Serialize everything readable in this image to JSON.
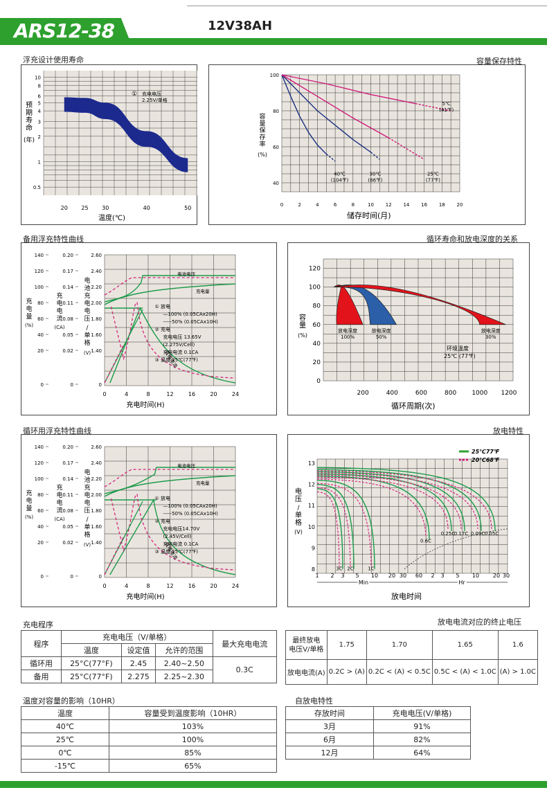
{
  "header": {
    "model": "ARS12-38",
    "spec": "12V38AH"
  },
  "sections": {
    "float_life": "浮充设计使用寿命",
    "capacity_retention": "容量保存特性",
    "standby_charge": "备用浮充特性曲线",
    "cycle_life": "循环寿命和放电深度的关系",
    "cycle_charge": "循环用浮充特性曲线",
    "discharge": "放电特性",
    "charge_proc": "充电程序",
    "cutoff": "放电电流对应的终止电压",
    "temp_effect": "温度对容量的影响（10HR）",
    "self_discharge": "自放电特性"
  },
  "chart_data": [
    {
      "type": "area",
      "id": "float-life",
      "ylabel": "预期寿命(年)",
      "xlabel": "温度(℃)",
      "x_ticks": [
        "20",
        "25",
        "30",
        "40",
        "50"
      ],
      "y_ticks": [
        "10",
        "8",
        "6",
        "5",
        "4",
        "3",
        "2",
        "1",
        "0.5"
      ],
      "legend": {
        "num": "①",
        "line1": "充电电压",
        "line2": "2.25V/单格"
      },
      "band_upper": [
        [
          20,
          5.8
        ],
        [
          25,
          5.7
        ],
        [
          30,
          5.0
        ],
        [
          40,
          2.3
        ],
        [
          50,
          1.1
        ]
      ],
      "band_lower": [
        [
          20,
          3.9
        ],
        [
          25,
          3.8
        ],
        [
          30,
          3.2
        ],
        [
          40,
          1.5
        ],
        [
          50,
          0.75
        ]
      ]
    },
    {
      "type": "line",
      "id": "capacity-retention",
      "ylabel": "容量保存率(%)",
      "xlabel": "储存时间(月)",
      "x_ticks": [
        "0",
        "2",
        "4",
        "6",
        "8",
        "10",
        "12",
        "14",
        "16",
        "18",
        "20"
      ],
      "y_ticks": [
        "100",
        "80",
        "60",
        "40"
      ],
      "series": [
        {
          "label": "40℃",
          "sub": "(104℉)",
          "color": "#1c2f80",
          "x": [
            0,
            1,
            2,
            3,
            4,
            5,
            6
          ],
          "y": [
            100,
            88,
            77,
            68,
            61,
            56,
            52
          ]
        },
        {
          "label": "30℃",
          "sub": "(86℉)",
          "color": "#1c2f80",
          "x": [
            0,
            2,
            4,
            6,
            8,
            10,
            11
          ],
          "y": [
            100,
            90,
            80,
            72,
            64,
            57,
            53
          ]
        },
        {
          "label": "25℃",
          "sub": "(77℉)",
          "color": "#d01a7a",
          "x": [
            0,
            4,
            8,
            12,
            16
          ],
          "y": [
            100,
            88,
            76,
            65,
            53
          ]
        },
        {
          "label": "5℃",
          "sub": "(41℉)",
          "color": "#d01a7a",
          "x": [
            0,
            5,
            10,
            15,
            19
          ],
          "y": [
            100,
            95,
            89,
            84,
            80
          ]
        }
      ]
    },
    {
      "type": "line",
      "id": "standby-charge",
      "xlabel": "充电时间(H)",
      "axis1": {
        "label": "充电量(%)",
        "ticks": [
          "140",
          "120",
          "100",
          "80",
          "60",
          "40",
          "20",
          "0"
        ]
      },
      "axis2": {
        "label": "充电电流(CA)",
        "ticks": [
          "0.20",
          "0.17",
          "0.14",
          "0.11",
          "0.08",
          "0.05",
          "0.02",
          "0"
        ]
      },
      "axis3": {
        "label": "电池充电电压/单格(V)",
        "ticks": [
          "2.60",
          "2.40",
          "2.20",
          "2.00",
          "1.80",
          "1.60",
          "1.40",
          "0"
        ]
      },
      "x_ticks": [
        "0",
        "4",
        "8",
        "12",
        "16",
        "20",
        "24"
      ],
      "curve_labels": {
        "voltage": "电池电压",
        "capacity": "充电量",
        "current": "充电电流"
      },
      "legend": [
        "①  放电",
        "—100% (0.05CAx20H)",
        "-----50% (0.05CAx10H)",
        "②  充电",
        "充电电压 13.65V",
        "(2.275V/Cell)",
        "充电电流 0.1CA",
        "③  温度 25℃(77℉)"
      ]
    },
    {
      "type": "line",
      "id": "cycle-life",
      "ylabel": "容量(%)",
      "xlabel": "循环周期(次)",
      "x_ticks": [
        "200",
        "400",
        "600",
        "800",
        "1000",
        "1200"
      ],
      "y_ticks": [
        "120",
        "100",
        "80",
        "60",
        "40",
        "20",
        "0"
      ],
      "series": [
        {
          "label": "放电深度",
          "sub": "100%",
          "color": "#e3131b",
          "x": [
            0,
            100,
            180
          ],
          "y": [
            100,
            103,
            60
          ]
        },
        {
          "label": "放电深度",
          "sub": "50%",
          "color": "#2b5fa8",
          "x": [
            0,
            250,
            420
          ],
          "y": [
            100,
            104,
            60
          ]
        },
        {
          "label": "放电深度",
          "sub": "30%",
          "color": "#e3131b",
          "x": [
            0,
            550,
            1170
          ],
          "y": [
            100,
            104,
            60
          ]
        }
      ],
      "note1": "环境温度",
      "note2": "25℃ (77℉)"
    },
    {
      "type": "line",
      "id": "cycle-charge",
      "xlabel": "充电时间(H)",
      "axis1": {
        "label": "充电量(%)",
        "ticks": [
          "140",
          "120",
          "100",
          "80",
          "60",
          "40",
          "20",
          "0"
        ]
      },
      "axis2": {
        "label": "充电电流(CA)",
        "ticks": [
          "0.20",
          "0.17",
          "0.14",
          "0.11",
          "0.08",
          "0.05",
          "0.02",
          "0"
        ]
      },
      "axis3": {
        "label": "电池充电电压/单格(V)",
        "ticks": [
          "2.60",
          "2.40",
          "2.20",
          "2.00",
          "1.80",
          "1.60",
          "1.40",
          "0"
        ]
      },
      "x_ticks": [
        "0",
        "4",
        "8",
        "12",
        "16",
        "20",
        "24"
      ],
      "curve_labels": {
        "voltage": "电池电压",
        "capacity": "充电量",
        "current": "充电电流"
      },
      "legend": [
        "①  放电",
        "—100% (0.05CAx20H)",
        "-----50% (0.05CAx10H)",
        "②  充电",
        "充电电压14.70V",
        "(2.45V/Cell)",
        "充电电流 0.1CA",
        "③  温度 25℃(77℉)"
      ]
    },
    {
      "type": "line",
      "id": "discharge",
      "ylabel": "电压/单格(V)",
      "xlabel": "放电时间",
      "x_ticks_min": [
        "1",
        "2",
        "3",
        "5",
        "10",
        "20",
        "30",
        "60"
      ],
      "x_ticks_hr": [
        "2",
        "3",
        "5",
        "10",
        "20",
        "30"
      ],
      "min_label": "Min",
      "hr_label": "Hr",
      "y_ticks": [
        "13",
        "12",
        "11",
        "10",
        "9",
        "8"
      ],
      "legend": [
        {
          "label": "25℃77℉",
          "color": "#2da02e"
        },
        {
          "label": "20℃68℉",
          "color": "#d01a7a"
        }
      ],
      "rates": [
        "3C",
        "2C",
        "1C",
        "0.6C",
        "0.25C",
        "0.17C",
        "0.09C",
        "0.05C"
      ]
    }
  ],
  "charge_table": {
    "h_proc": "程序",
    "h_voltage": "充电电压（V/单格）",
    "h_max": "最大充电电流",
    "h_temp": "温度",
    "h_set": "设定值",
    "h_range": "允许的范围",
    "rows": [
      {
        "name": "循环用",
        "temp": "25°C(77°F)",
        "set": "2.45",
        "range": "2.40~2.50"
      },
      {
        "name": "备用",
        "temp": "25°C(77°F)",
        "set": "2.275",
        "range": "2.25~2.30"
      }
    ],
    "max_current": "0.3C"
  },
  "cutoff_table": {
    "h1": "最终放电",
    "h2": "电压V/单格",
    "voltages": [
      "1.75",
      "1.70",
      "1.65",
      "1.6"
    ],
    "row_label": "放电电流(A)",
    "currents": [
      "0.2C > (A)",
      "0.2C < (A) < 0.5C",
      "0.5C < (A) < 1.0C",
      "(A) > 1.0C"
    ]
  },
  "temp_table": {
    "h1": "温度",
    "h2": "容量受到温度影响（10HR）",
    "rows": [
      [
        "40℃",
        "103%"
      ],
      [
        "25℃",
        "100%"
      ],
      [
        "0℃",
        "85%"
      ],
      [
        "-15℃",
        "65%"
      ]
    ]
  },
  "self_table": {
    "h1": "存放时间",
    "h2": "充电电压(V/单格)",
    "rows": [
      [
        "3月",
        "91%"
      ],
      [
        "6月",
        "82%"
      ],
      [
        "12月",
        "64%"
      ]
    ]
  }
}
